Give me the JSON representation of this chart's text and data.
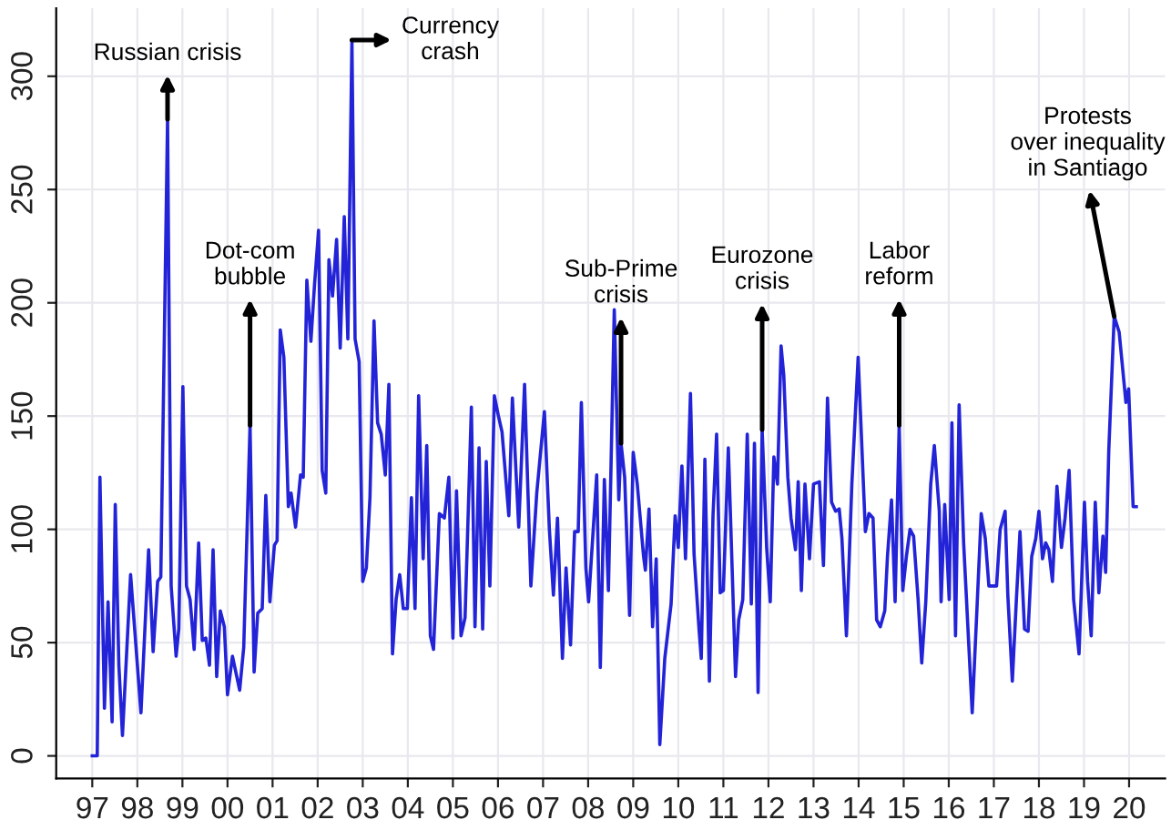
{
  "chart_data": {
    "type": "line",
    "color": "#2323d8",
    "grid": true,
    "marker": "none",
    "line_style": "solid",
    "xlim": [
      1996.2,
      2020.8
    ],
    "ylim": [
      -10,
      330
    ],
    "xticks": [
      {
        "value": 1997,
        "label": "97"
      },
      {
        "value": 1998,
        "label": "98"
      },
      {
        "value": 1999,
        "label": "99"
      },
      {
        "value": 2000,
        "label": "00"
      },
      {
        "value": 2001,
        "label": "01"
      },
      {
        "value": 2002,
        "label": "02"
      },
      {
        "value": 2003,
        "label": "03"
      },
      {
        "value": 2004,
        "label": "04"
      },
      {
        "value": 2005,
        "label": "05"
      },
      {
        "value": 2006,
        "label": "06"
      },
      {
        "value": 2007,
        "label": "07"
      },
      {
        "value": 2008,
        "label": "08"
      },
      {
        "value": 2009,
        "label": "09"
      },
      {
        "value": 2010,
        "label": "10"
      },
      {
        "value": 2011,
        "label": "11"
      },
      {
        "value": 2012,
        "label": "12"
      },
      {
        "value": 2013,
        "label": "13"
      },
      {
        "value": 2014,
        "label": "14"
      },
      {
        "value": 2015,
        "label": "15"
      },
      {
        "value": 2016,
        "label": "16"
      },
      {
        "value": 2017,
        "label": "17"
      },
      {
        "value": 2018,
        "label": "18"
      },
      {
        "value": 2019,
        "label": "19"
      },
      {
        "value": 2020,
        "label": "20"
      }
    ],
    "yticks": [
      0,
      50,
      100,
      150,
      200,
      250,
      300
    ],
    "x": [
      1997.0,
      1997.11,
      1997.17,
      1997.27,
      1997.35,
      1997.44,
      1997.51,
      1997.59,
      1997.67,
      1997.85,
      1998.08,
      1998.25,
      1998.35,
      1998.45,
      1998.52,
      1998.67,
      1998.75,
      1998.86,
      1998.92,
      1999.01,
      1999.09,
      1999.17,
      1999.26,
      1999.36,
      1999.44,
      1999.52,
      1999.6,
      1999.68,
      1999.76,
      1999.84,
      1999.93,
      2000.0,
      2000.11,
      2000.27,
      2000.36,
      2000.5,
      2000.59,
      2000.67,
      2000.77,
      2000.85,
      2000.94,
      2001.04,
      2001.1,
      2001.17,
      2001.25,
      2001.35,
      2001.41,
      2001.51,
      2001.62,
      2001.68,
      2001.76,
      2001.85,
      2001.93,
      2002.02,
      2002.1,
      2002.18,
      2002.25,
      2002.33,
      2002.42,
      2002.5,
      2002.59,
      2002.67,
      2002.76,
      2002.83,
      2002.92,
      2003.0,
      2003.08,
      2003.16,
      2003.25,
      2003.33,
      2003.41,
      2003.5,
      2003.58,
      2003.66,
      2003.74,
      2003.82,
      2003.9,
      2003.99,
      2004.08,
      2004.16,
      2004.24,
      2004.34,
      2004.42,
      2004.5,
      2004.57,
      2004.7,
      2004.81,
      2004.91,
      2005.0,
      2005.08,
      2005.18,
      2005.27,
      2005.41,
      2005.49,
      2005.58,
      2005.66,
      2005.74,
      2005.82,
      2005.92,
      2006.01,
      2006.09,
      2006.24,
      2006.32,
      2006.46,
      2006.59,
      2006.73,
      2006.86,
      2007.03,
      2007.14,
      2007.23,
      2007.32,
      2007.43,
      2007.51,
      2007.61,
      2007.7,
      2007.78,
      2007.85,
      2007.95,
      2008.01,
      2008.11,
      2008.19,
      2008.27,
      2008.36,
      2008.45,
      2008.58,
      2008.68,
      2008.73,
      2008.81,
      2008.92,
      2009.0,
      2009.09,
      2009.23,
      2009.27,
      2009.35,
      2009.43,
      2009.51,
      2009.59,
      2009.7,
      2009.84,
      2009.93,
      2010.0,
      2010.08,
      2010.16,
      2010.27,
      2010.35,
      2010.46,
      2010.51,
      2010.59,
      2010.69,
      2010.77,
      2010.85,
      2010.93,
      2011.0,
      2011.11,
      2011.27,
      2011.34,
      2011.43,
      2011.53,
      2011.62,
      2011.69,
      2011.77,
      2011.86,
      2011.96,
      2012.04,
      2012.12,
      2012.2,
      2012.28,
      2012.34,
      2012.43,
      2012.5,
      2012.6,
      2012.66,
      2012.73,
      2012.81,
      2012.91,
      2013.0,
      2013.13,
      2013.22,
      2013.31,
      2013.4,
      2013.49,
      2013.57,
      2013.63,
      2013.73,
      2013.85,
      2013.99,
      2014.15,
      2014.23,
      2014.32,
      2014.4,
      2014.48,
      2014.58,
      2014.64,
      2014.73,
      2014.81,
      2014.9,
      2014.98,
      2015.06,
      2015.14,
      2015.22,
      2015.32,
      2015.4,
      2015.49,
      2015.6,
      2015.68,
      2015.79,
      2015.83,
      2015.91,
      2016.01,
      2016.07,
      2016.15,
      2016.23,
      2016.33,
      2016.52,
      2016.63,
      2016.72,
      2016.81,
      2016.89,
      2016.98,
      2017.06,
      2017.14,
      2017.25,
      2017.31,
      2017.41,
      2017.5,
      2017.58,
      2017.68,
      2017.76,
      2017.84,
      2017.93,
      2018.0,
      2018.08,
      2018.15,
      2018.22,
      2018.3,
      2018.4,
      2018.5,
      2018.58,
      2018.67,
      2018.77,
      2018.89,
      2019.01,
      2019.08,
      2019.16,
      2019.25,
      2019.33,
      2019.42,
      2019.48,
      2019.55,
      2019.67,
      2019.78,
      2019.93,
      2019.99,
      2020.09,
      2020.16
    ],
    "values": [
      0,
      0,
      123,
      21,
      68,
      15,
      111,
      40,
      9,
      80,
      19,
      91,
      46,
      77,
      79,
      281,
      75,
      44,
      56,
      163,
      75,
      69,
      47,
      94,
      51,
      52,
      40,
      91,
      35,
      64,
      57,
      27,
      44,
      29,
      48,
      146,
      37,
      63,
      65,
      115,
      68,
      93,
      95,
      188,
      176,
      110,
      116,
      101,
      124,
      123,
      210,
      183,
      208,
      232,
      126,
      116,
      219,
      203,
      228,
      180,
      238,
      184,
      316,
      184,
      174,
      77,
      83,
      114,
      192,
      147,
      142,
      124,
      164,
      45,
      69,
      80,
      65,
      65,
      114,
      65,
      159,
      87,
      137,
      53,
      47,
      107,
      105,
      123,
      52,
      117,
      53,
      61,
      154,
      57,
      136,
      56,
      130,
      75,
      159,
      150,
      143,
      106,
      158,
      101,
      164,
      75,
      116,
      152,
      100,
      71,
      105,
      43,
      83,
      49,
      99,
      99,
      156,
      83,
      68,
      99,
      124,
      39,
      122,
      73,
      197,
      113,
      138,
      123,
      62,
      134,
      120,
      88,
      82,
      109,
      57,
      87,
      5,
      43,
      67,
      106,
      92,
      128,
      87,
      160,
      89,
      56,
      43,
      131,
      33,
      106,
      142,
      72,
      73,
      136,
      35,
      60,
      69,
      142,
      67,
      138,
      28,
      144,
      92,
      68,
      132,
      120,
      181,
      168,
      123,
      105,
      91,
      121,
      73,
      120,
      87,
      120,
      121,
      84,
      158,
      112,
      108,
      109,
      96,
      53,
      120,
      176,
      99,
      107,
      105,
      60,
      57,
      64,
      88,
      113,
      68,
      146,
      73,
      88,
      100,
      97,
      69,
      41,
      68,
      120,
      137,
      108,
      68,
      111,
      69,
      147,
      53,
      155,
      94,
      19,
      67,
      107,
      96,
      75,
      75,
      75,
      100,
      108,
      71,
      33,
      69,
      99,
      56,
      55,
      88,
      96,
      108,
      87,
      94,
      91,
      77,
      119,
      92,
      105,
      126,
      69,
      45,
      112,
      77,
      53,
      112,
      72,
      97,
      81,
      135,
      194,
      187,
      156,
      162,
      110,
      110
    ],
    "annotations": [
      {
        "text": "Russian crisis",
        "x": 1998.67,
        "y": 281
      },
      {
        "text": "Dot-com\nbubble",
        "x": 2000.5,
        "y": 146
      },
      {
        "text": "Currency\ncrash",
        "x": 2002.76,
        "y": 316
      },
      {
        "text": "Sub-Prime\ncrisis",
        "x": 2008.73,
        "y": 138
      },
      {
        "text": "Eurozone\ncrisis",
        "x": 2011.86,
        "y": 144
      },
      {
        "text": "Labor\nreform",
        "x": 2014.9,
        "y": 146
      },
      {
        "text": "Protests\nover inequality\nin Santiago",
        "x": 2019.67,
        "y": 194
      }
    ]
  }
}
